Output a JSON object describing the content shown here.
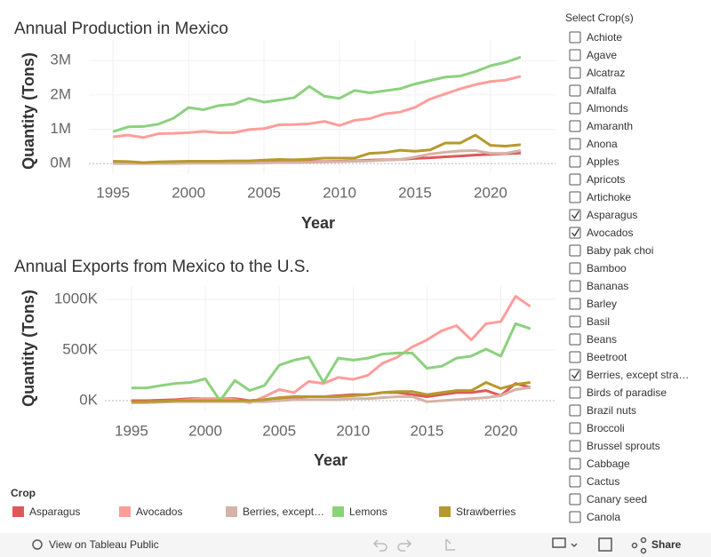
{
  "chart_data": [
    {
      "type": "line",
      "title": "Annual Production in Mexico",
      "xlabel": "Year",
      "ylabel": "Quantity (Tons)",
      "legend_title": "Crop",
      "x": [
        1995,
        1996,
        1997,
        1998,
        1999,
        2000,
        2001,
        2002,
        2003,
        2004,
        2005,
        2006,
        2007,
        2008,
        2009,
        2010,
        2011,
        2012,
        2013,
        2014,
        2015,
        2016,
        2017,
        2018,
        2019,
        2020,
        2021,
        2022
      ],
      "xlim": [
        1993.4,
        2024.3
      ],
      "xticks": [
        1995,
        2000,
        2005,
        2010,
        2015,
        2020
      ],
      "ylim": [
        -280000,
        3600000
      ],
      "yticks": [
        {
          "value": 0,
          "label": "0M"
        },
        {
          "value": 1000000,
          "label": "1M"
        },
        {
          "value": 2000000,
          "label": "2M"
        },
        {
          "value": 3000000,
          "label": "3M"
        }
      ],
      "grid": true,
      "series": [
        {
          "name": "Asparagus",
          "color": "#e15759",
          "values": [
            30000,
            30000,
            30000,
            30000,
            30000,
            40000,
            40000,
            40000,
            40000,
            50000,
            50000,
            60000,
            60000,
            60000,
            60000,
            70000,
            80000,
            100000,
            110000,
            120000,
            150000,
            170000,
            200000,
            220000,
            250000,
            270000,
            290000,
            310000
          ]
        },
        {
          "name": "Avocados",
          "color": "#ff9d9a",
          "values": [
            780000,
            830000,
            760000,
            870000,
            880000,
            900000,
            940000,
            900000,
            900000,
            990000,
            1020000,
            1130000,
            1140000,
            1160000,
            1230000,
            1110000,
            1260000,
            1310000,
            1450000,
            1500000,
            1640000,
            1880000,
            2030000,
            2180000,
            2300000,
            2390000,
            2430000,
            2540000
          ]
        },
        {
          "name": "Berries, except…",
          "color": "#d4b4a6",
          "values": [
            0,
            0,
            0,
            0,
            0,
            10000,
            10000,
            10000,
            10000,
            10000,
            20000,
            30000,
            30000,
            40000,
            50000,
            60000,
            70000,
            80000,
            100000,
            120000,
            190000,
            280000,
            330000,
            370000,
            380000,
            300000,
            300000,
            380000
          ]
        },
        {
          "name": "Lemons",
          "color": "#8cd17d",
          "values": [
            930000,
            1070000,
            1080000,
            1150000,
            1320000,
            1630000,
            1570000,
            1690000,
            1730000,
            1900000,
            1790000,
            1850000,
            1920000,
            2250000,
            1960000,
            1900000,
            2130000,
            2060000,
            2120000,
            2180000,
            2320000,
            2420000,
            2520000,
            2550000,
            2680000,
            2850000,
            2950000,
            3100000
          ]
        },
        {
          "name": "Strawberries",
          "color": "#b6992d",
          "values": [
            70000,
            60000,
            30000,
            50000,
            60000,
            70000,
            70000,
            70000,
            80000,
            80000,
            100000,
            120000,
            110000,
            130000,
            160000,
            160000,
            160000,
            300000,
            320000,
            390000,
            360000,
            400000,
            600000,
            600000,
            830000,
            530000,
            510000,
            550000
          ]
        }
      ]
    },
    {
      "type": "line",
      "title": "Annual Exports from Mexico to the U.S.",
      "xlabel": "Year",
      "ylabel": "Quantity (Tons)",
      "x": [
        1995,
        1996,
        1997,
        1998,
        1999,
        2000,
        2001,
        2002,
        2003,
        2004,
        2005,
        2006,
        2007,
        2008,
        2009,
        2010,
        2011,
        2012,
        2013,
        2014,
        2015,
        2016,
        2017,
        2018,
        2019,
        2020,
        2021,
        2022
      ],
      "xlim": [
        1993.2,
        2023.7
      ],
      "xticks": [
        1995,
        2000,
        2005,
        2010,
        2015,
        2020
      ],
      "ylim": [
        -96000,
        1131000
      ],
      "yticks": [
        {
          "value": 0,
          "label": "0K"
        },
        {
          "value": 500000,
          "label": "500K"
        },
        {
          "value": 1000000,
          "label": "1000K"
        }
      ],
      "grid": true,
      "series": [
        {
          "name": "Asparagus",
          "color": "#e15759",
          "values": [
            0,
            0,
            5000,
            10000,
            20000,
            20000,
            20000,
            20000,
            0,
            10000,
            20000,
            30000,
            40000,
            40000,
            50000,
            60000,
            60000,
            80000,
            80000,
            60000,
            40000,
            60000,
            80000,
            80000,
            100000,
            50000,
            170000,
            130000
          ]
        },
        {
          "name": "Avocados",
          "color": "#ff9d9a",
          "values": [
            -20000,
            -10000,
            -10000,
            0,
            10000,
            20000,
            20000,
            10000,
            -20000,
            40000,
            110000,
            80000,
            190000,
            170000,
            230000,
            210000,
            250000,
            370000,
            430000,
            530000,
            600000,
            690000,
            740000,
            600000,
            760000,
            780000,
            1030000,
            930000
          ]
        },
        {
          "name": "Berries, except…",
          "color": "#d4b4a6",
          "values": [
            -20000,
            -20000,
            -15000,
            -10000,
            -10000,
            -10000,
            -10000,
            -10000,
            -10000,
            -10000,
            0,
            10000,
            10000,
            10000,
            10000,
            20000,
            20000,
            30000,
            40000,
            40000,
            -10000,
            0,
            10000,
            20000,
            30000,
            50000,
            110000,
            130000
          ]
        },
        {
          "name": "Lemons",
          "color": "#8cd17d",
          "values": [
            125000,
            125000,
            150000,
            170000,
            180000,
            215000,
            0,
            200000,
            100000,
            150000,
            350000,
            400000,
            430000,
            180000,
            420000,
            400000,
            420000,
            460000,
            470000,
            470000,
            320000,
            340000,
            420000,
            440000,
            510000,
            440000,
            760000,
            710000
          ]
        },
        {
          "name": "Strawberries",
          "color": "#b6992d",
          "values": [
            -10000,
            -10000,
            -5000,
            0,
            0,
            0,
            0,
            0,
            0,
            10000,
            30000,
            40000,
            40000,
            40000,
            40000,
            50000,
            60000,
            80000,
            90000,
            90000,
            60000,
            80000,
            100000,
            100000,
            180000,
            120000,
            160000,
            180000
          ]
        }
      ]
    }
  ],
  "filter": {
    "title": "Select Crop(s)",
    "options": [
      {
        "label": "Achiote",
        "checked": false
      },
      {
        "label": "Agave",
        "checked": false
      },
      {
        "label": "Alcatraz",
        "checked": false
      },
      {
        "label": "Alfalfa",
        "checked": false
      },
      {
        "label": "Almonds",
        "checked": false
      },
      {
        "label": "Amaranth",
        "checked": false
      },
      {
        "label": "Anona",
        "checked": false
      },
      {
        "label": "Apples",
        "checked": false
      },
      {
        "label": "Apricots",
        "checked": false
      },
      {
        "label": "Artichoke",
        "checked": false
      },
      {
        "label": "Asparagus",
        "checked": true
      },
      {
        "label": "Avocados",
        "checked": true
      },
      {
        "label": "Baby pak choi",
        "checked": false
      },
      {
        "label": "Bamboo",
        "checked": false
      },
      {
        "label": "Bananas",
        "checked": false
      },
      {
        "label": "Barley",
        "checked": false
      },
      {
        "label": "Basil",
        "checked": false
      },
      {
        "label": "Beans",
        "checked": false
      },
      {
        "label": "Beetroot",
        "checked": false
      },
      {
        "label": "Berries, except stra…",
        "checked": true
      },
      {
        "label": "Birds of paradise",
        "checked": false
      },
      {
        "label": "Brazil nuts",
        "checked": false
      },
      {
        "label": "Broccoli",
        "checked": false
      },
      {
        "label": "Brussel sprouts",
        "checked": false
      },
      {
        "label": "Cabbage",
        "checked": false
      },
      {
        "label": "Cactus",
        "checked": false
      },
      {
        "label": "Canary seed",
        "checked": false
      },
      {
        "label": "Canola",
        "checked": false
      }
    ]
  },
  "toolbar": {
    "view": "View on Tableau Public",
    "share": "Share"
  }
}
